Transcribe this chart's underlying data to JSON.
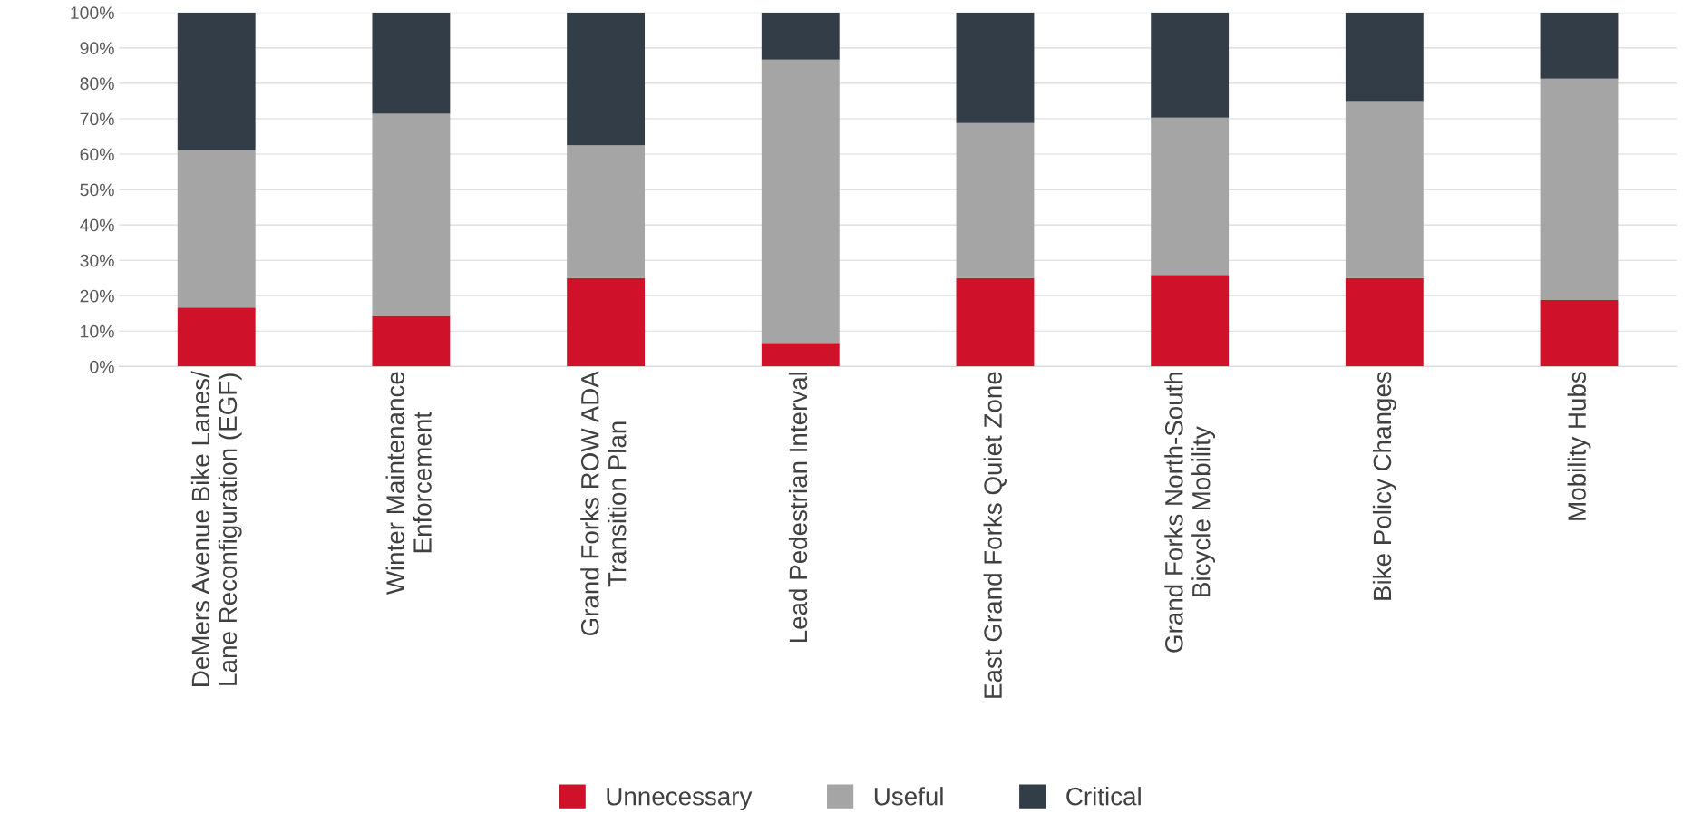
{
  "chart_data": {
    "type": "bar",
    "stacked": true,
    "categories": [
      "DeMers Avenue Bike Lanes/\nLane Reconfiguration (EGF)",
      "Winter Maintenance\nEnforcement",
      "Grand Forks ROW ADA\nTransition Plan",
      "Lead Pedestrian Interval",
      "East Grand Forks Quiet Zone",
      "Grand Forks North-South\nBicycle Mobility",
      "Bike Policy Changes",
      "Mobility Hubs"
    ],
    "series": [
      {
        "name": "Unnecessary",
        "color": "#cf1229",
        "values": [
          16.7,
          14.3,
          25,
          6.7,
          25,
          25.9,
          25,
          18.8
        ]
      },
      {
        "name": "Useful",
        "color": "#a5a5a5",
        "values": [
          44.4,
          57.1,
          37.5,
          80,
          43.8,
          44.4,
          50,
          62.5
        ]
      },
      {
        "name": "Critical",
        "color": "#333d47",
        "values": [
          38.9,
          28.6,
          37.5,
          13.3,
          31.2,
          29.7,
          25,
          18.7
        ]
      }
    ],
    "ylim": [
      0,
      100
    ],
    "yticks": [
      {
        "value": 0,
        "label": "0%"
      },
      {
        "value": 10,
        "label": "10%"
      },
      {
        "value": 20,
        "label": "20%"
      },
      {
        "value": 30,
        "label": "30%"
      },
      {
        "value": 40,
        "label": "40%"
      },
      {
        "value": 50,
        "label": "50%"
      },
      {
        "value": 60,
        "label": "60%"
      },
      {
        "value": 70,
        "label": "70%"
      },
      {
        "value": 80,
        "label": "80%"
      },
      {
        "value": 90,
        "label": "90%"
      },
      {
        "value": 100,
        "label": "100%"
      }
    ],
    "grid": "y",
    "legend": "bottom"
  }
}
